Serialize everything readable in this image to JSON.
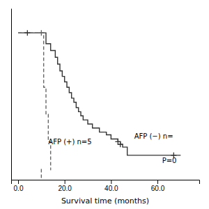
{
  "chart_data": {
    "type": "line",
    "xlabel": "Survival time (months)",
    "xlim": [
      -3,
      78
    ],
    "ylim": [
      -0.08,
      1.18
    ],
    "xticks": [
      {
        "value": 0.0,
        "label": "0.0"
      },
      {
        "value": 20.0,
        "label": "20.0"
      },
      {
        "value": 40.0,
        "label": "40.0"
      },
      {
        "value": 60.0,
        "label": "60.0"
      }
    ],
    "tick_labels": "x",
    "grid": false,
    "series": [
      {
        "type": "step",
        "color": "#333333",
        "line_style": "solid",
        "x": [
          0,
          4,
          12,
          14,
          16,
          17,
          18,
          19,
          20,
          21,
          22,
          23,
          24,
          25,
          26,
          27,
          28,
          30,
          32,
          35,
          38,
          40,
          43,
          44,
          45,
          47,
          67,
          70
        ],
        "values": [
          1.0,
          1.0,
          0.92,
          0.87,
          0.82,
          0.77,
          0.72,
          0.68,
          0.64,
          0.6,
          0.56,
          0.52,
          0.49,
          0.45,
          0.42,
          0.39,
          0.36,
          0.33,
          0.3,
          0.27,
          0.25,
          0.22,
          0.2,
          0.18,
          0.16,
          0.1,
          0.1,
          0.1
        ]
      },
      {
        "type": "step",
        "color": "#666666",
        "line_style": "dashed",
        "x": [
          0,
          10,
          11,
          12,
          13,
          14
        ],
        "values": [
          1.0,
          1.0,
          0.6,
          0.4,
          0.2,
          0.0
        ]
      },
      {
        "type": "line",
        "color": "#666666",
        "line_style": "dashed",
        "x": [
          14,
          14
        ],
        "values": [
          0.0,
          -0.01
        ]
      },
      {
        "type": "line",
        "color": "#666666",
        "line_style": "dashed",
        "x": [
          10,
          10
        ],
        "values": [
          0.0,
          -0.07
        ]
      },
      {
        "type": "scatter",
        "color": "#333333",
        "marker": "plus",
        "x": [
          4,
          43,
          44,
          67
        ],
        "values": [
          1.0,
          0.2,
          0.18,
          0.1
        ]
      },
      {
        "type": "scatter",
        "color": "#666666",
        "marker": "plus",
        "x": [
          10
        ],
        "values": [
          1.0
        ]
      }
    ],
    "annotations": [
      {
        "text": "AFP (−) n=",
        "x": 50,
        "y": 0.24
      },
      {
        "text": "AFP (+) n=5",
        "x": 13,
        "y": 0.2
      },
      {
        "text": "P=0",
        "x": 62,
        "y": 0.06
      }
    ]
  }
}
